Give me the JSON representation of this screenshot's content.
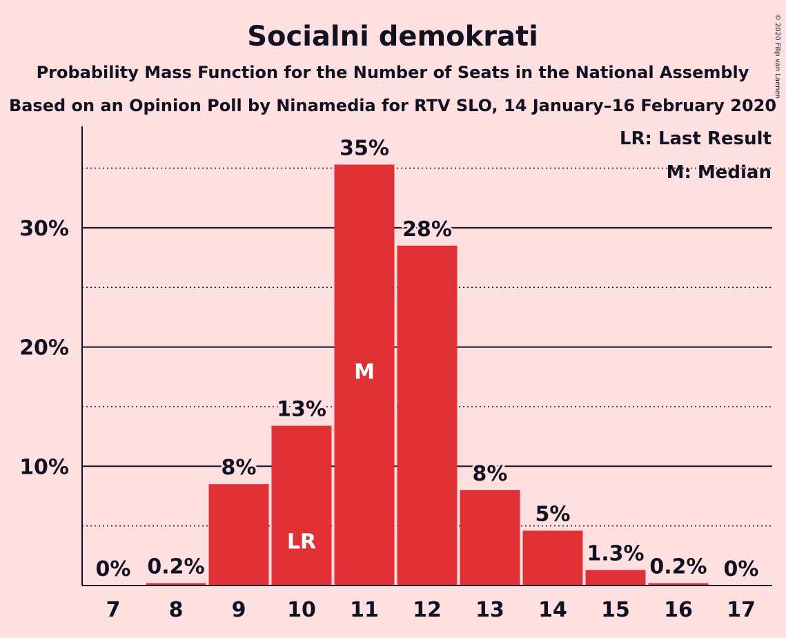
{
  "chart_data": {
    "type": "bar",
    "title": "Socialni demokrati",
    "subtitle": "Probability Mass Function for the Number of Seats in the National Assembly",
    "subtitle2": "Based on an Opinion Poll by Ninamedia for RTV SLO, 14 January–16 February 2020",
    "copyright": "© 2020 Filip van Laenen",
    "categories": [
      "7",
      "8",
      "9",
      "10",
      "11",
      "12",
      "13",
      "14",
      "15",
      "16",
      "17"
    ],
    "values": [
      0,
      0.2,
      8.5,
      13.4,
      35.3,
      28.5,
      8.0,
      4.6,
      1.3,
      0.2,
      0
    ],
    "data_labels": [
      "0%",
      "0.2%",
      "8%",
      "13%",
      "35%",
      "28%",
      "8%",
      "5%",
      "1.3%",
      "0.2%",
      "0%"
    ],
    "inner_labels": {
      "10": "LR",
      "11": "M"
    },
    "yticks": [
      10,
      20,
      30
    ],
    "ytick_labels": [
      "10%",
      "20%",
      "30%"
    ],
    "minor_gridlines": [
      5,
      15,
      25,
      35
    ],
    "ylim": [
      0,
      38
    ],
    "legend": [
      "LR: Last Result",
      "M: Median"
    ],
    "legend_position": "top-right",
    "bar_color": "#e03236"
  }
}
